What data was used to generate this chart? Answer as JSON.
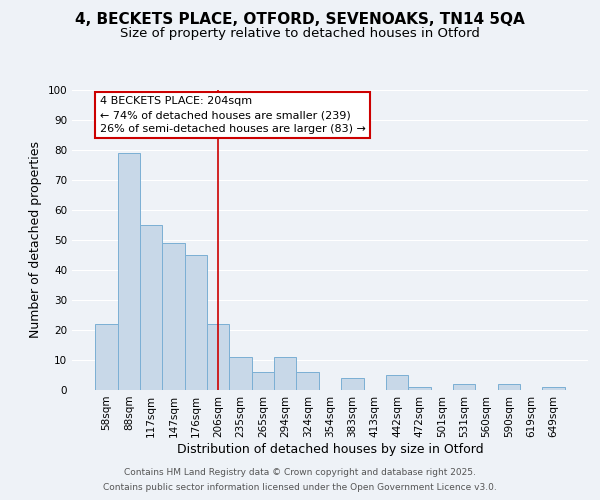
{
  "title_line1": "4, BECKETS PLACE, OTFORD, SEVENOAKS, TN14 5QA",
  "title_line2": "Size of property relative to detached houses in Otford",
  "xlabel": "Distribution of detached houses by size in Otford",
  "ylabel": "Number of detached properties",
  "bar_labels": [
    "58sqm",
    "88sqm",
    "117sqm",
    "147sqm",
    "176sqm",
    "206sqm",
    "235sqm",
    "265sqm",
    "294sqm",
    "324sqm",
    "354sqm",
    "383sqm",
    "413sqm",
    "442sqm",
    "472sqm",
    "501sqm",
    "531sqm",
    "560sqm",
    "590sqm",
    "619sqm",
    "649sqm"
  ],
  "bar_values": [
    22,
    79,
    55,
    49,
    45,
    22,
    11,
    6,
    11,
    6,
    0,
    4,
    0,
    5,
    1,
    0,
    2,
    0,
    2,
    0,
    1
  ],
  "bar_color": "#c8d8e8",
  "bar_edge_color": "#7bafd4",
  "vline_x": 5,
  "vline_color": "#cc0000",
  "annotation_title": "4 BECKETS PLACE: 204sqm",
  "annotation_line1": "← 74% of detached houses are smaller (239)",
  "annotation_line2": "26% of semi-detached houses are larger (83) →",
  "annotation_box_color": "#ffffff",
  "annotation_box_edge": "#cc0000",
  "ylim": [
    0,
    100
  ],
  "yticks": [
    0,
    10,
    20,
    30,
    40,
    50,
    60,
    70,
    80,
    90,
    100
  ],
  "footer_line1": "Contains HM Land Registry data © Crown copyright and database right 2025.",
  "footer_line2": "Contains public sector information licensed under the Open Government Licence v3.0.",
  "background_color": "#eef2f7",
  "grid_color": "#ffffff",
  "title_fontsize": 11,
  "subtitle_fontsize": 9.5,
  "axis_label_fontsize": 9,
  "tick_fontsize": 7.5,
  "annotation_fontsize": 8,
  "footer_fontsize": 6.5
}
